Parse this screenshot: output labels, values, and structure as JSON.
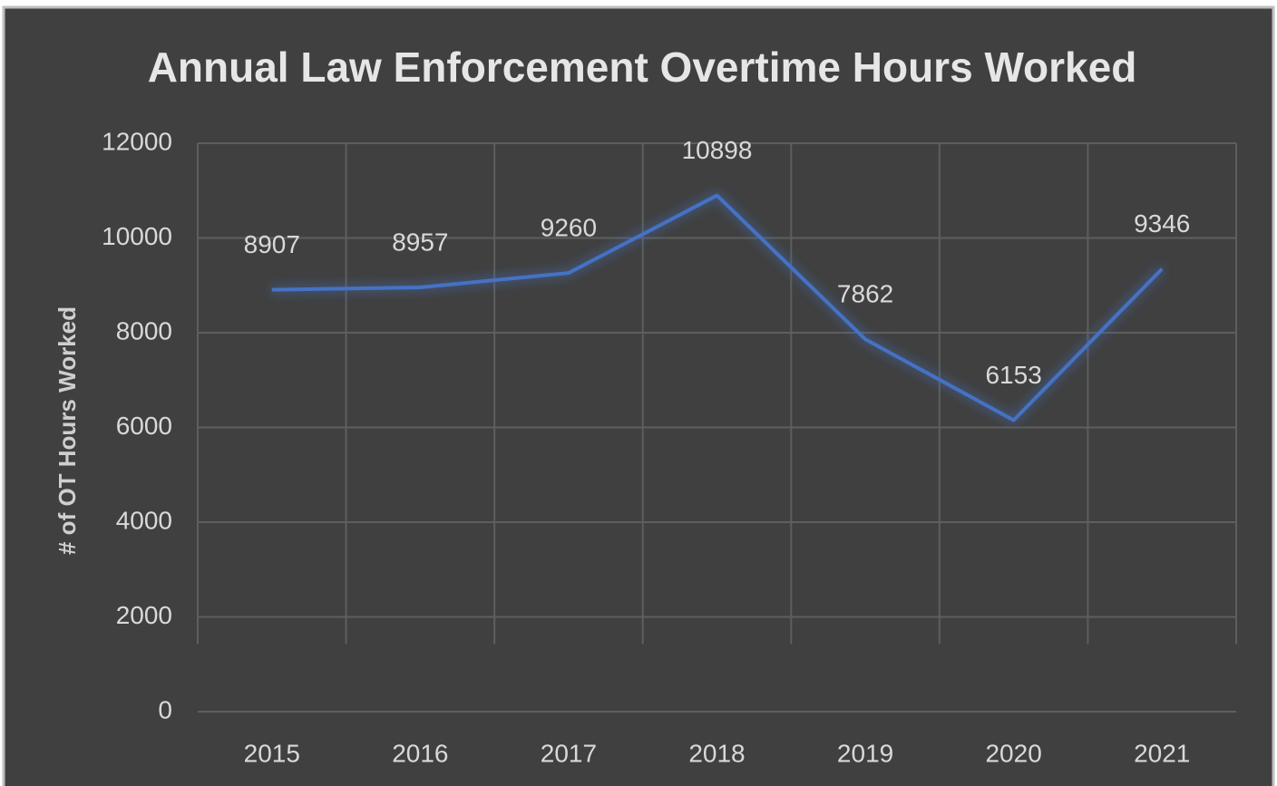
{
  "chart_data": {
    "type": "line",
    "title": "Annual Law Enforcement Overtime Hours Worked",
    "y_label": "# of OT Hours Worked",
    "categories": [
      "2015",
      "2016",
      "2017",
      "2018",
      "2019",
      "2020",
      "2021"
    ],
    "values": [
      8907,
      8957,
      9260,
      10898,
      7862,
      6153,
      9346
    ],
    "color": "#4472c4",
    "ylim": [
      0,
      12000
    ],
    "yticks": [
      0,
      2000,
      4000,
      6000,
      8000,
      10000,
      12000
    ],
    "grid": true
  }
}
